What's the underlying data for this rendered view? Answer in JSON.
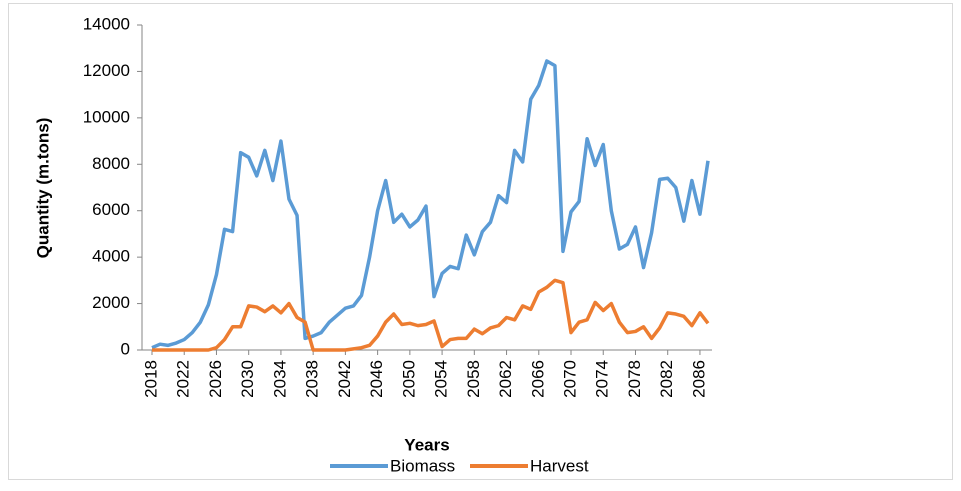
{
  "chart_data": {
    "type": "line",
    "x_label": "Years",
    "y_label": "Quantity (m.tons)",
    "x": [
      2018,
      2019,
      2020,
      2021,
      2022,
      2023,
      2024,
      2025,
      2026,
      2027,
      2028,
      2029,
      2030,
      2031,
      2032,
      2033,
      2034,
      2035,
      2036,
      2037,
      2038,
      2039,
      2040,
      2041,
      2042,
      2043,
      2044,
      2045,
      2046,
      2047,
      2048,
      2049,
      2050,
      2051,
      2052,
      2053,
      2054,
      2055,
      2056,
      2057,
      2058,
      2059,
      2060,
      2061,
      2062,
      2063,
      2064,
      2065,
      2066,
      2067,
      2068,
      2069,
      2070,
      2071,
      2072,
      2073,
      2074,
      2075,
      2076,
      2077,
      2078,
      2079,
      2080,
      2081,
      2082,
      2083,
      2084,
      2085,
      2086,
      2087
    ],
    "xlim": [
      2018,
      2087
    ],
    "xticks": [
      2018,
      2022,
      2026,
      2030,
      2034,
      2038,
      2042,
      2046,
      2050,
      2054,
      2058,
      2062,
      2066,
      2070,
      2074,
      2078,
      2082,
      2086
    ],
    "ylim": [
      0,
      14000
    ],
    "yticks": [
      0,
      2000,
      4000,
      6000,
      8000,
      10000,
      12000,
      14000
    ],
    "grid": false,
    "legend": "bottom",
    "series": [
      {
        "name": "Biomass",
        "color": "#5b9bd5",
        "values": [
          100,
          250,
          200,
          300,
          450,
          750,
          1200,
          1950,
          3250,
          5200,
          5100,
          8500,
          8300,
          7500,
          8600,
          7300,
          9000,
          6500,
          5800,
          500,
          600,
          750,
          1200,
          1500,
          1800,
          1900,
          2350,
          4000,
          6000,
          7300,
          5500,
          5850,
          5300,
          5600,
          6200,
          2300,
          3300,
          3600,
          3500,
          4950,
          4100,
          5100,
          5500,
          6650,
          6350,
          8600,
          8100,
          10800,
          11400,
          12450,
          12250,
          4250,
          5950,
          6400,
          9100,
          7950,
          8850,
          6000,
          4350,
          4550,
          5300,
          3550,
          5050,
          7350,
          7400,
          7000,
          5550,
          7300,
          5850,
          8150
        ]
      },
      {
        "name": "Harvest",
        "color": "#ed7d31",
        "values": [
          0,
          0,
          0,
          0,
          0,
          0,
          0,
          0,
          100,
          450,
          1000,
          1000,
          1900,
          1850,
          1650,
          1900,
          1600,
          2000,
          1400,
          1200,
          0,
          0,
          0,
          0,
          0,
          50,
          100,
          200,
          600,
          1200,
          1550,
          1100,
          1150,
          1050,
          1100,
          1250,
          150,
          450,
          500,
          500,
          900,
          700,
          950,
          1050,
          1400,
          1300,
          1900,
          1750,
          2500,
          2700,
          3000,
          2900,
          750,
          1200,
          1300,
          2050,
          1700,
          2000,
          1200,
          750,
          800,
          1000,
          500,
          950,
          1600,
          1550,
          1450,
          1050,
          1600,
          1150
        ]
      }
    ]
  }
}
